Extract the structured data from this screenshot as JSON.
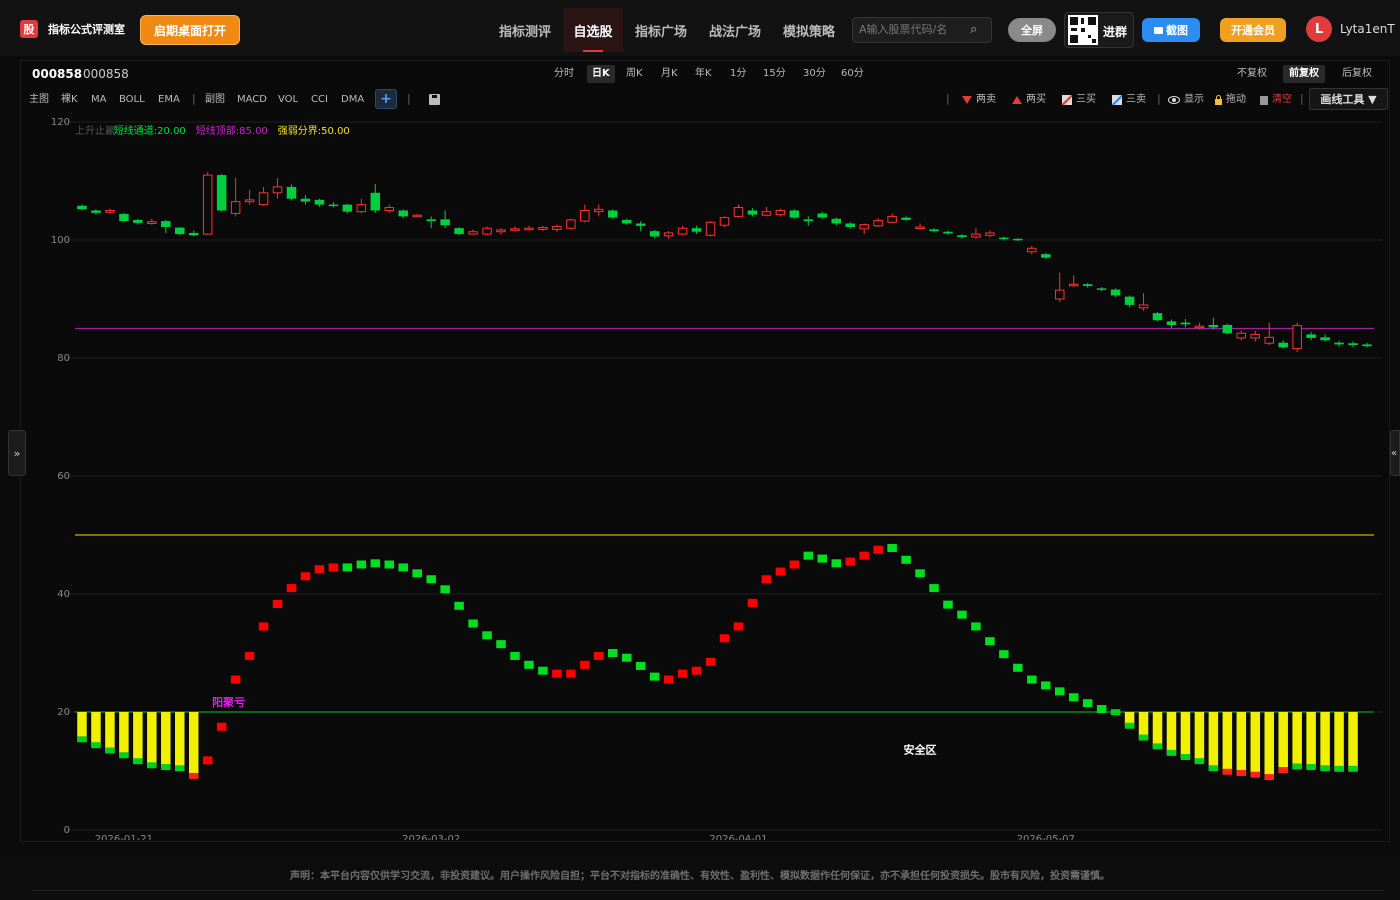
{
  "header": {
    "brand_icon": "股",
    "brand_name": "指标公式评测室",
    "launch_button": "启期桌面打开",
    "nav": [
      "指标测评",
      "自选股",
      "指标广场",
      "战法广场",
      "模拟策略"
    ],
    "nav_active": 1,
    "search_placeholder": "A输入股票代码/名",
    "fullscreen": "全屏",
    "group": "进群",
    "screenshot": "截图",
    "vip": "开通会员",
    "avatar_letter": "L",
    "username": "Lyta1enT"
  },
  "stock": {
    "code": "000858",
    "name": "000858"
  },
  "periods": [
    "分时",
    "日K",
    "周K",
    "月K",
    "年K",
    "1分",
    "15分",
    "30分",
    "60分"
  ],
  "period_active": 1,
  "adjust": [
    "不复权",
    "前复权",
    "后复权"
  ],
  "adjust_active": 1,
  "toolbar": {
    "indicators_left": [
      "主图",
      "裸K",
      "MA",
      "BOLL",
      "EMA"
    ],
    "indicators_right": [
      "副图",
      "MACD",
      "VOL",
      "CCI",
      "DMA"
    ],
    "plus": "+",
    "draw": [
      {
        "label": "两卖",
        "icon": "down-triangle-icon"
      },
      {
        "label": "两买",
        "icon": "up-triangle-icon"
      },
      {
        "label": "三买",
        "icon": "line-tool-icon"
      },
      {
        "label": "三卖",
        "icon": "line-tool-icon"
      },
      {
        "label": "显示",
        "icon": "eye-icon"
      },
      {
        "label": "拖动",
        "icon": "lock-icon"
      },
      {
        "label": "清空",
        "icon": "trash-icon"
      }
    ],
    "draw_tools": "画线工具 ▼"
  },
  "side": {
    "left": "»",
    "right": "«"
  },
  "chart_data": {
    "type": "candlestick+bar",
    "yticks": [
      0,
      20,
      40,
      60,
      80,
      100,
      120
    ],
    "ylim": [
      0,
      120
    ],
    "xtick_labels": [
      "2026-01-21",
      "2026-03-02",
      "2026-04-01",
      "2026-05-07"
    ],
    "xtick_positions": [
      3,
      25,
      47,
      69
    ],
    "legend": [
      {
        "text": "上升止赢",
        "color": "#555555"
      },
      {
        "text": "短线通道:20.00",
        "color": "#00e040"
      },
      {
        "text": "短线顶部:85.00",
        "color": "#d020d0"
      },
      {
        "text": "强弱分界:50.00",
        "color": "#f0e020"
      }
    ],
    "hlines": [
      {
        "value": 85,
        "color": "#a020a0"
      },
      {
        "value": 50,
        "color": "#c8b400"
      },
      {
        "value": 20,
        "color": "#00a020"
      }
    ],
    "annotations": [
      {
        "text": "阳聚亏",
        "x": 10.5,
        "y": 21,
        "color": "#e020e0"
      },
      {
        "text": "安全区",
        "x": 60,
        "y": 13,
        "color": "#ffffff"
      }
    ],
    "candles": [
      [
        105.8,
        105.2,
        106.0,
        105.1
      ],
      [
        105.0,
        104.6,
        105.2,
        104.3
      ],
      [
        104.7,
        105.0,
        105.3,
        104.4
      ],
      [
        104.4,
        103.2,
        104.6,
        103.0
      ],
      [
        103.4,
        102.9,
        103.6,
        102.6
      ],
      [
        102.8,
        103.1,
        103.6,
        102.6
      ],
      [
        103.2,
        102.2,
        103.4,
        101.2
      ],
      [
        102.1,
        101.0,
        102.2,
        100.8
      ],
      [
        101.2,
        100.8,
        101.6,
        100.6
      ],
      [
        101.0,
        111.0,
        111.5,
        100.8
      ],
      [
        111.0,
        105.0,
        111.2,
        104.8
      ],
      [
        104.5,
        106.5,
        110.5,
        104.0
      ],
      [
        106.5,
        106.8,
        108.5,
        106.0
      ],
      [
        106.0,
        108.0,
        109.0,
        105.8
      ],
      [
        108.0,
        109.0,
        110.5,
        107.0
      ],
      [
        109.0,
        107.0,
        109.4,
        106.7
      ],
      [
        107.0,
        106.5,
        107.6,
        106.0
      ],
      [
        106.8,
        106.0,
        107.0,
        105.6
      ],
      [
        106.0,
        105.8,
        106.4,
        105.5
      ],
      [
        106.0,
        104.8,
        106.1,
        104.5
      ],
      [
        104.8,
        106.0,
        107.0,
        104.5
      ],
      [
        108.0,
        105.0,
        109.5,
        104.6
      ],
      [
        105.0,
        105.5,
        106.0,
        104.6
      ],
      [
        105.0,
        104.0,
        105.2,
        103.7
      ],
      [
        104.0,
        104.2,
        104.4,
        103.9
      ],
      [
        103.5,
        103.2,
        104.0,
        102.0
      ],
      [
        103.5,
        102.5,
        105.0,
        102.0
      ],
      [
        102.0,
        101.0,
        102.2,
        100.8
      ],
      [
        101.0,
        101.4,
        101.8,
        100.9
      ],
      [
        101.0,
        102.0,
        102.3,
        100.8
      ],
      [
        101.4,
        101.7,
        102.0,
        100.9
      ],
      [
        101.8,
        101.9,
        102.3,
        101.5
      ],
      [
        101.8,
        102.0,
        102.4,
        101.6
      ],
      [
        101.8,
        102.1,
        102.4,
        101.5
      ],
      [
        101.8,
        102.3,
        102.6,
        101.4
      ],
      [
        102.0,
        103.4,
        103.6,
        101.8
      ],
      [
        103.2,
        105.0,
        106.0,
        103.0
      ],
      [
        104.8,
        105.2,
        106.0,
        104.0
      ],
      [
        105.0,
        103.8,
        105.2,
        103.6
      ],
      [
        103.4,
        102.8,
        103.6,
        102.6
      ],
      [
        102.8,
        102.4,
        103.2,
        101.5
      ],
      [
        101.5,
        100.6,
        101.7,
        100.3
      ],
      [
        100.7,
        101.2,
        101.5,
        100.2
      ],
      [
        101.0,
        102.0,
        102.4,
        100.8
      ],
      [
        102.0,
        101.4,
        102.4,
        101.0
      ],
      [
        100.8,
        103.0,
        103.2,
        100.6
      ],
      [
        102.5,
        103.8,
        104.0,
        102.2
      ],
      [
        104.0,
        105.5,
        106.0,
        103.8
      ],
      [
        105.0,
        104.3,
        105.4,
        104.0
      ],
      [
        104.2,
        104.8,
        105.6,
        104.0
      ],
      [
        104.3,
        105.0,
        105.3,
        104.0
      ],
      [
        105.0,
        103.8,
        105.2,
        103.6
      ],
      [
        103.5,
        103.2,
        104.0,
        102.4
      ],
      [
        104.5,
        103.8,
        104.8,
        103.6
      ],
      [
        103.6,
        102.8,
        103.8,
        102.5
      ],
      [
        102.8,
        102.2,
        103.0,
        101.9
      ],
      [
        101.9,
        102.6,
        102.8,
        101.0
      ],
      [
        102.4,
        103.3,
        103.7,
        102.2
      ],
      [
        103.0,
        104.0,
        104.5,
        102.8
      ],
      [
        103.8,
        103.4,
        104.0,
        103.2
      ],
      [
        102.0,
        102.2,
        102.8,
        101.8
      ],
      [
        101.8,
        101.5,
        102.0,
        101.3
      ],
      [
        101.4,
        101.1,
        101.6,
        100.9
      ],
      [
        100.8,
        100.5,
        101.0,
        100.2
      ],
      [
        100.5,
        101.0,
        102.0,
        100.2
      ],
      [
        100.8,
        101.2,
        101.6,
        100.4
      ],
      [
        100.4,
        100.2,
        100.6,
        99.9
      ],
      [
        100.2,
        100.0,
        100.3,
        99.8
      ],
      [
        98.0,
        98.6,
        99.0,
        97.6
      ],
      [
        97.6,
        97.0,
        97.8,
        96.8
      ],
      [
        90.0,
        91.5,
        94.5,
        89.5
      ],
      [
        92.5,
        92.5,
        94.0,
        92.0
      ],
      [
        92.5,
        92.2,
        92.7,
        91.9
      ],
      [
        91.8,
        91.6,
        92.0,
        91.3
      ],
      [
        91.6,
        90.6,
        91.8,
        90.3
      ],
      [
        90.4,
        89.0,
        90.6,
        88.6
      ],
      [
        88.5,
        89.0,
        91.0,
        88.0
      ],
      [
        87.6,
        86.4,
        87.8,
        86.2
      ],
      [
        86.2,
        85.6,
        86.5,
        85.1
      ],
      [
        86.0,
        85.7,
        86.6,
        85.2
      ],
      [
        85.2,
        85.4,
        86.0,
        84.8
      ],
      [
        85.6,
        85.2,
        86.8,
        84.8
      ],
      [
        85.6,
        84.2,
        85.8,
        84.0
      ],
      [
        83.4,
        84.2,
        84.6,
        83.0
      ],
      [
        83.4,
        84.0,
        84.6,
        82.8
      ],
      [
        82.5,
        83.5,
        86.0,
        82.2
      ],
      [
        82.6,
        81.8,
        83.0,
        81.6
      ],
      [
        81.6,
        85.5,
        86.0,
        81.0
      ],
      [
        84.0,
        83.4,
        84.4,
        83.0
      ],
      [
        83.5,
        83.0,
        84.0,
        82.8
      ],
      [
        82.6,
        82.3,
        82.9,
        81.9
      ],
      [
        82.5,
        82.2,
        82.8,
        81.8
      ],
      [
        82.3,
        82.0,
        82.6,
        81.8
      ]
    ],
    "oscillator": [
      15.2,
      14.2,
      13.3,
      12.5,
      11.5,
      10.8,
      10.5,
      10.3,
      9.0,
      11.8,
      17.5,
      25.5,
      29.5,
      34.5,
      38.3,
      41.0,
      43.0,
      44.2,
      44.5,
      44.5,
      45.0,
      45.2,
      45.0,
      44.5,
      43.5,
      42.5,
      40.8,
      38.0,
      35.0,
      33.0,
      31.5,
      29.5,
      28.0,
      27.0,
      26.5,
      26.5,
      28.0,
      29.5,
      30.0,
      29.2,
      27.8,
      26.0,
      25.5,
      26.5,
      27.0,
      28.5,
      32.5,
      34.5,
      38.5,
      42.5,
      43.8,
      45.0,
      46.5,
      46.0,
      45.2,
      45.5,
      46.5,
      47.5,
      47.8,
      45.8,
      43.5,
      41.0,
      38.2,
      36.5,
      34.5,
      32.0,
      29.8,
      27.5,
      25.5,
      24.5,
      23.5,
      22.5,
      21.5,
      20.5,
      19.8,
      17.5,
      15.5,
      14.0,
      12.9,
      12.2,
      11.5,
      10.3,
      9.7,
      9.5,
      9.2,
      8.8,
      10.0,
      10.6,
      10.5,
      10.3,
      10.2,
      10.2
    ],
    "osc_colors": [
      "y",
      "y",
      "y",
      "y",
      "y",
      "y",
      "y",
      "y",
      "y",
      "r",
      "r",
      "r",
      "r",
      "r",
      "r",
      "r",
      "r",
      "r",
      "r",
      "g",
      "g",
      "g",
      "g",
      "g",
      "g",
      "g",
      "g",
      "g",
      "g",
      "g",
      "g",
      "g",
      "g",
      "g",
      "r",
      "r",
      "r",
      "r",
      "g",
      "g",
      "g",
      "g",
      "r",
      "r",
      "r",
      "r",
      "r",
      "r",
      "r",
      "r",
      "r",
      "r",
      "g",
      "g",
      "g",
      "r",
      "r",
      "r",
      "g",
      "g",
      "g",
      "g",
      "g",
      "g",
      "g",
      "g",
      "g",
      "g",
      "g",
      "g",
      "g",
      "g",
      "g",
      "g",
      "y",
      "y",
      "y",
      "y",
      "y",
      "y",
      "y",
      "y",
      "y",
      "y",
      "y",
      "y",
      "y",
      "y",
      "y",
      "y",
      "y",
      "y"
    ]
  },
  "footer": {
    "disclaimer": "声明：本平台内容仅供学习交流，非投资建议。用户操作风险自担；平台不对指标的准确性、有效性、盈利性、模拟数据作任何保证，亦不承担任何投资损失。股市有风险，投资需谨慎。"
  }
}
